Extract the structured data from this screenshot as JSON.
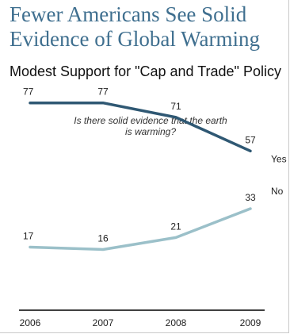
{
  "title": "Fewer Americans See Solid Evidence of Global Warming",
  "subtitle": "Modest Support for \"Cap and Trade\" Policy",
  "chart_data": {
    "type": "line",
    "question": "Is there solid evidence that the earth is warming?",
    "x": [
      "2006",
      "2007",
      "2008",
      "2009"
    ],
    "series": [
      {
        "name": "Yes",
        "values": [
          77,
          77,
          71,
          57
        ],
        "color": "#2f5873"
      },
      {
        "name": "No",
        "values": [
          17,
          16,
          21,
          33
        ],
        "color": "#9bc0c9"
      }
    ],
    "ylim": [
      0,
      100
    ],
    "grid": false,
    "legend": "inline-right"
  }
}
